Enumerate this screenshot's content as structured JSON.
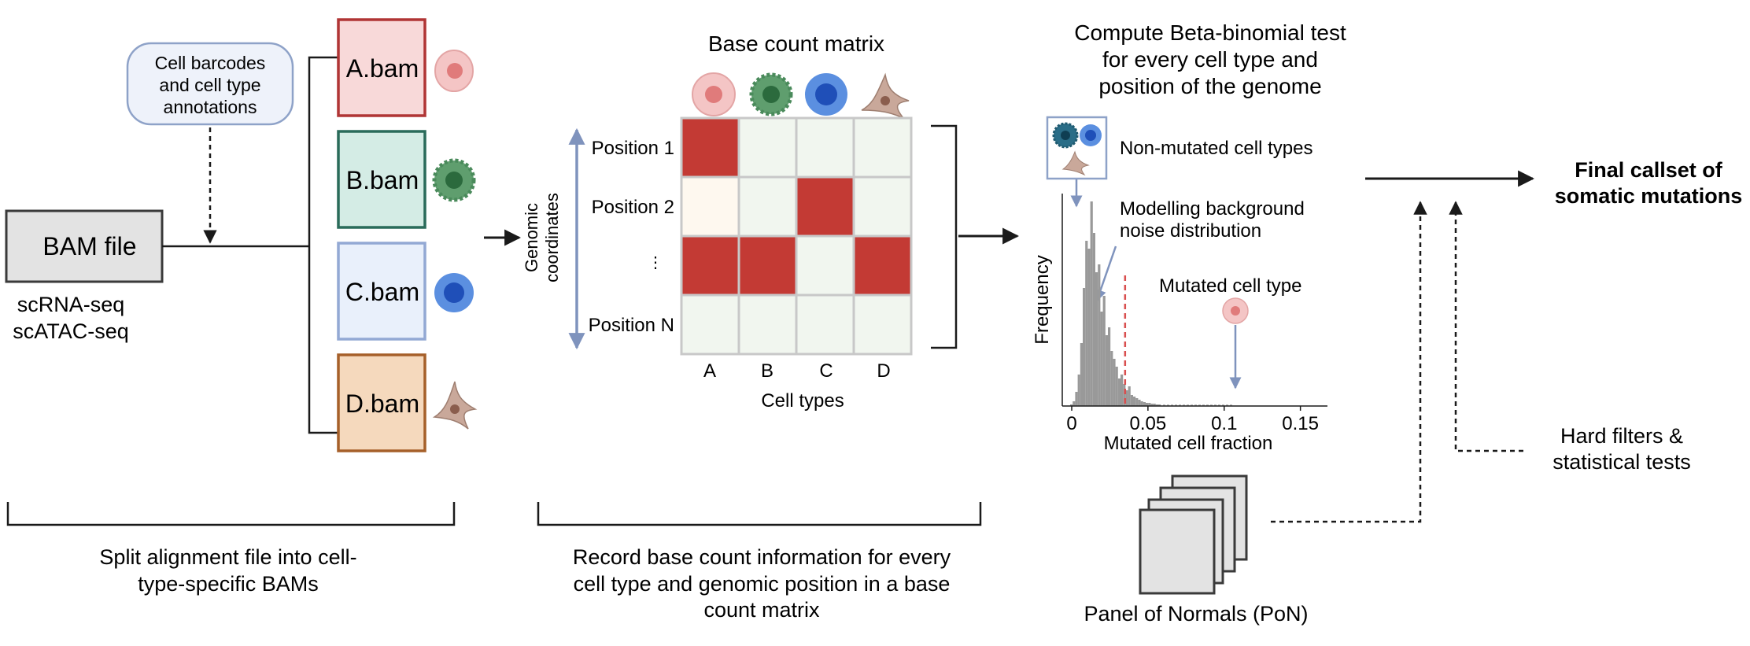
{
  "input": {
    "bam_file_label": "BAM file",
    "seq_types": [
      "scRNA-seq",
      "scATAC-seq"
    ],
    "annotation_bubble": [
      "Cell barcodes",
      "and cell type",
      "annotations"
    ]
  },
  "split_bams": [
    {
      "label": "A.bam",
      "fill": "#f8d9d9",
      "stroke": "#b03535",
      "cell_icon": "pink-cell-icon"
    },
    {
      "label": "B.bam",
      "fill": "#d4ece5",
      "stroke": "#2a6b5a",
      "cell_icon": "green-cell-icon"
    },
    {
      "label": "C.bam",
      "fill": "#e9f0fb",
      "stroke": "#93a9d4",
      "cell_icon": "blue-cell-icon"
    },
    {
      "label": "D.bam",
      "fill": "#f5d9bd",
      "stroke": "#a6602a",
      "cell_icon": "brown-cell-icon"
    }
  ],
  "matrix": {
    "title": "Base count matrix",
    "y_axis_label": [
      "Genomic",
      "coordinates"
    ],
    "row_labels": [
      "Position 1",
      "Position 2",
      "⋮",
      "Position N"
    ],
    "col_labels": [
      "A",
      "B",
      "C",
      "D"
    ],
    "x_axis_label": "Cell types",
    "cells": [
      [
        1,
        0,
        0,
        0
      ],
      [
        2,
        0,
        1,
        0
      ],
      [
        1,
        1,
        0,
        1
      ],
      [
        0,
        0,
        0,
        0
      ]
    ],
    "colors": {
      "filled": "#c33a34",
      "empty": "#f1f6ef",
      "faint": "#fef8ef",
      "grid": "#c8c8c8"
    }
  },
  "test": {
    "title": [
      "Compute Beta-binomial test",
      "for every cell type and",
      "position of the genome"
    ],
    "non_mutated_label": "Non-mutated cell types",
    "background_label": [
      "Modelling background",
      "noise distribution"
    ],
    "mutated_label": "Mutated cell type",
    "chart_data": {
      "type": "histogram",
      "xlabel": "Mutated cell fraction",
      "ylabel": "Frequency",
      "xlim": [
        0,
        0.16
      ],
      "xticks": [
        "0",
        "0.05",
        "0.1",
        "0.15"
      ],
      "threshold_x": 0.035,
      "mutated_x": 0.1
    }
  },
  "filters_label": [
    "Hard filters &",
    "statistical tests"
  ],
  "pon_label": "Panel of Normals (PoN)",
  "final_label": [
    "Final callset of",
    "somatic mutations"
  ],
  "captions": {
    "split": [
      "Split alignment file into cell-",
      "type-specific BAMs"
    ],
    "record": [
      "Record base count information for every",
      "cell type and genomic position in a base",
      "count matrix"
    ]
  },
  "colors": {
    "arrow_blue": "#7f93bd",
    "threshold_red": "#d94f4f",
    "hist_gray": "#999999",
    "box_gray": "#e3e3e3"
  }
}
